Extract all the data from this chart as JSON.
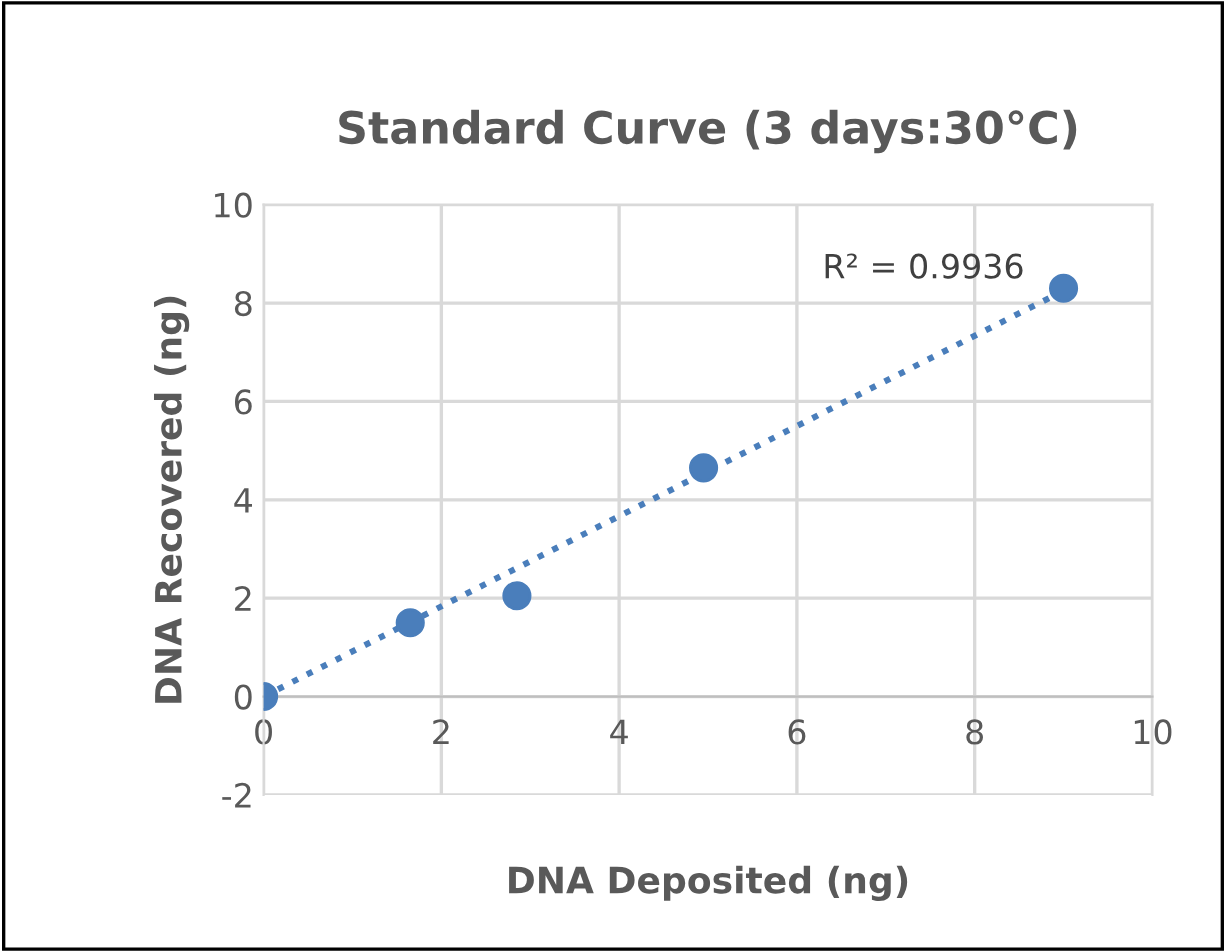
{
  "chart_data": {
    "type": "scatter",
    "title": "Standard Curve (3 days:30°C)",
    "xlabel": "DNA Deposited (ng)",
    "ylabel": "DNA Recovered (ng)",
    "series": [
      {
        "color": "#4a7ebb",
        "marker": "circle",
        "x": [
          0,
          1.65,
          2.85,
          4.95,
          9.0
        ],
        "values": [
          0,
          1.5,
          2.05,
          4.65,
          8.3
        ]
      },
      {
        "type": "line",
        "color": "#4a7ebb",
        "line_style": "dotted",
        "marker": "none",
        "x": [
          0,
          9.0
        ],
        "values": [
          0,
          8.25
        ]
      }
    ],
    "annotations": [
      "R² = 0.9936"
    ],
    "xlim": [
      0,
      10
    ],
    "ylim": [
      -2,
      10
    ],
    "xticks": [
      0,
      2,
      4,
      6,
      8,
      10
    ],
    "yticks": [
      -2,
      0,
      2,
      4,
      6,
      8,
      10
    ],
    "grid": true
  }
}
